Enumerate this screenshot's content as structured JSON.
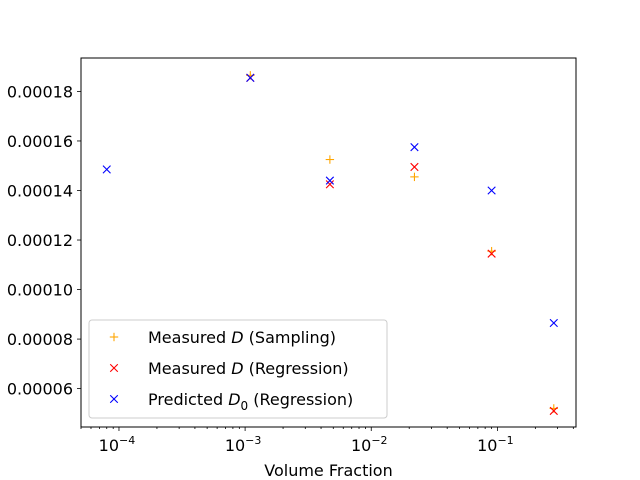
{
  "chart_data": {
    "type": "scatter",
    "title": "",
    "xlabel": "Volume Fraction",
    "ylabel": "",
    "xscale": "log",
    "xlim": [
      5e-05,
      0.42
    ],
    "ylim": [
      4.45e-05,
      0.0001935
    ],
    "grid": false,
    "legend_position": "lower-left",
    "x_ticks": [
      {
        "value": 0.0001,
        "base": "10",
        "exp": "−4"
      },
      {
        "value": 0.001,
        "base": "10",
        "exp": "−3"
      },
      {
        "value": 0.01,
        "base": "10",
        "exp": "−2"
      },
      {
        "value": 0.1,
        "base": "10",
        "exp": "−1"
      }
    ],
    "y_ticks": [
      {
        "value": 6e-05,
        "label": "0.00006"
      },
      {
        "value": 8e-05,
        "label": "0.00008"
      },
      {
        "value": 0.0001,
        "label": "0.00010"
      },
      {
        "value": 0.00012,
        "label": "0.00012"
      },
      {
        "value": 0.00014,
        "label": "0.00014"
      },
      {
        "value": 0.00016,
        "label": "0.00016"
      },
      {
        "value": 0.00018,
        "label": "0.00018"
      }
    ],
    "series": [
      {
        "name_parts": [
          "Measured ",
          "D",
          "",
          " (Sampling)"
        ],
        "marker": "plus",
        "color": "#ffa500",
        "points": [
          {
            "x": 0.0011,
            "y": 0.0001865
          },
          {
            "x": 0.0047,
            "y": 0.0001525
          },
          {
            "x": 0.022,
            "y": 0.0001455
          },
          {
            "x": 0.09,
            "y": 0.0001155
          },
          {
            "x": 0.28,
            "y": 5.2e-05
          }
        ]
      },
      {
        "name_parts": [
          "Measured ",
          "D",
          "",
          " (Regression)"
        ],
        "marker": "x",
        "color": "#ff0000",
        "points": [
          {
            "x": 0.0011,
            "y": 0.0001855
          },
          {
            "x": 0.0047,
            "y": 0.0001425
          },
          {
            "x": 0.022,
            "y": 0.0001495
          },
          {
            "x": 0.09,
            "y": 0.0001145
          },
          {
            "x": 0.28,
            "y": 5.1e-05
          }
        ]
      },
      {
        "name_parts": [
          "Predicted ",
          "D",
          "0",
          " (Regression)"
        ],
        "marker": "x",
        "color": "#0000ff",
        "points": [
          {
            "x": 8e-05,
            "y": 0.0001485
          },
          {
            "x": 0.0011,
            "y": 0.0001855
          },
          {
            "x": 0.0047,
            "y": 0.000144
          },
          {
            "x": 0.022,
            "y": 0.0001575
          },
          {
            "x": 0.09,
            "y": 0.00014
          },
          {
            "x": 0.28,
            "y": 8.65e-05
          }
        ]
      }
    ]
  }
}
